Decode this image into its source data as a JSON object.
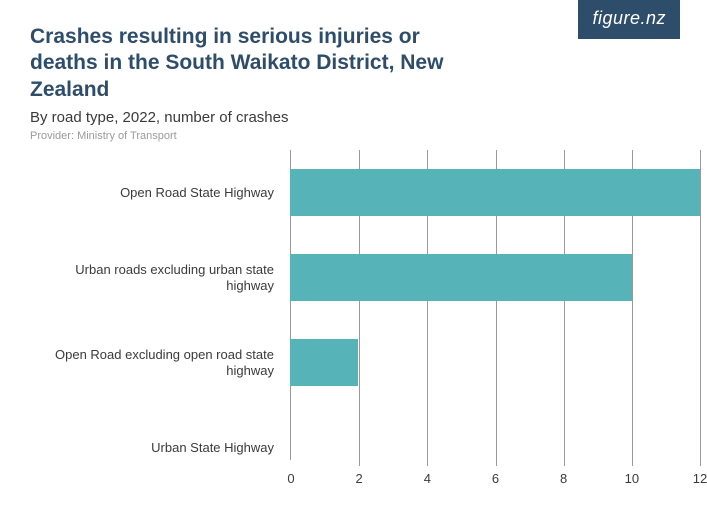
{
  "logo": {
    "text": "figure.nz"
  },
  "header": {
    "title": "Crashes resulting in serious injuries or deaths in the South Waikato District, New Zealand",
    "subtitle": "By road type, 2022, number of crashes",
    "provider": "Provider: Ministry of Transport"
  },
  "chart": {
    "type": "bar-horizontal",
    "bar_color": "#56b3b8",
    "grid_color": "#9a9a9a",
    "background_color": "#ffffff",
    "label_fontsize": 13,
    "xlim": [
      0,
      12
    ],
    "xtick_step": 2,
    "xticks": [
      0,
      2,
      4,
      6,
      8,
      10,
      12
    ],
    "categories": [
      "Open Road State Highway",
      "Urban roads excluding urban state highway",
      "Open Road excluding open road state highway",
      "Urban State Highway"
    ],
    "values": [
      12,
      10,
      2,
      0
    ]
  }
}
